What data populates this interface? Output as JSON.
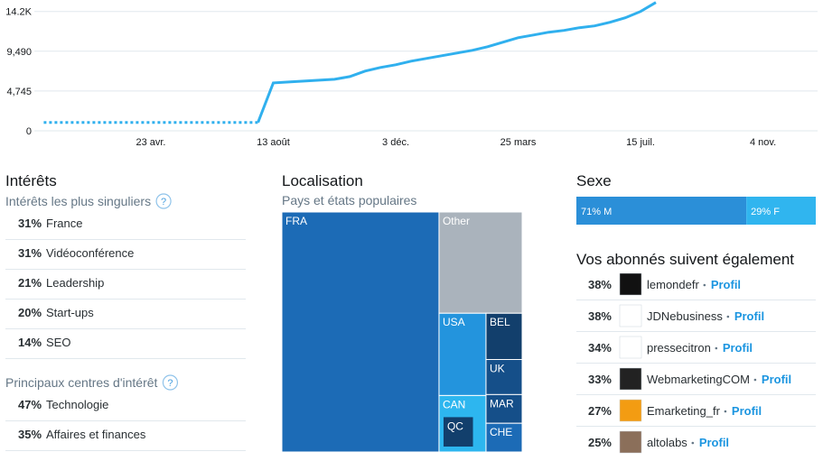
{
  "chart_data": {
    "type": "line",
    "categories": [
      null,
      null,
      null,
      null,
      null,
      null,
      null,
      "23 avr.",
      null,
      null,
      null,
      null,
      null,
      null,
      null,
      "13 août",
      null,
      null,
      null,
      null,
      null,
      null,
      null,
      "3 déc.",
      null,
      null,
      null,
      null,
      null,
      null,
      null,
      "25 mars",
      null,
      null,
      null,
      null,
      null,
      null,
      null,
      "15 juil.",
      null,
      null,
      null,
      null,
      null,
      null,
      null,
      "4 nov.",
      null,
      null,
      null
    ],
    "series": [
      {
        "color": "#30b0ee",
        "dotted": true,
        "values": [
          1000,
          1000,
          1000,
          1000,
          1000,
          1000,
          1000,
          1000,
          1000,
          1000,
          1000,
          1000,
          1000,
          1000,
          1000,
          null,
          null,
          null,
          null,
          null,
          null,
          null,
          null,
          null,
          null,
          null,
          null,
          null,
          null,
          null,
          null,
          null,
          null,
          null,
          null,
          null,
          null,
          null,
          null,
          null,
          null,
          null,
          null,
          null,
          null,
          null,
          null,
          null,
          null,
          null,
          null
        ]
      },
      {
        "color": "#30b0ee",
        "dotted": false,
        "values": [
          null,
          null,
          null,
          null,
          null,
          null,
          null,
          null,
          null,
          null,
          null,
          null,
          null,
          null,
          1000,
          5715,
          5824,
          5931,
          6039,
          6147,
          6470,
          7118,
          7549,
          7872,
          8304,
          8627,
          8951,
          9274,
          9598,
          10029,
          10568,
          11107,
          11431,
          11755,
          11970,
          12294,
          12509,
          12941,
          13480,
          14235,
          15314,
          null,
          null,
          null,
          null,
          null,
          null,
          null,
          null,
          null,
          null
        ]
      }
    ],
    "ylim": [
      0,
      15600
    ],
    "yticks": [
      0,
      {
        "value": 4745,
        "label": "4,745"
      },
      {
        "value": 9490,
        "label": "9,490"
      },
      {
        "value": 14235,
        "label": "14.2K"
      }
    ],
    "grid": true
  },
  "interests": {
    "title": "Intérêts",
    "help": "?",
    "sections": [
      {
        "title": "Intérêts les plus singuliers",
        "items": [
          {
            "pct": "31%",
            "name": "France"
          },
          {
            "pct": "31%",
            "name": "Vidéoconférence"
          },
          {
            "pct": "21%",
            "name": "Leadership"
          },
          {
            "pct": "20%",
            "name": "Start-ups"
          },
          {
            "pct": "14%",
            "name": "SEO"
          }
        ]
      },
      {
        "title": "Principaux centres d'intérêt",
        "items": [
          {
            "pct": "47%",
            "name": "Technologie"
          },
          {
            "pct": "35%",
            "name": "Affaires et finances"
          }
        ]
      }
    ]
  },
  "location": {
    "title": "Localisation",
    "subtitle": "Pays et états populaires",
    "cells": [
      {
        "label": "FRA",
        "value": 65.4,
        "color": "#1c6bb6"
      },
      {
        "label": "Other",
        "value": 14.6,
        "color": "#aab3bc"
      },
      {
        "label": "USA",
        "value": 6.7,
        "color": "#2394dd"
      },
      {
        "label": "CAN",
        "value": 4.6,
        "color": "#2db6ef",
        "children": [
          {
            "label": "QC",
            "value": 1.5,
            "color": "#123f6c"
          }
        ]
      },
      {
        "label": "BEL",
        "value": 2.9,
        "color": "#123f6c"
      },
      {
        "label": "UK",
        "value": 2.2,
        "color": "#154f89"
      },
      {
        "label": "MAR",
        "value": 1.8,
        "color": "#154f89"
      },
      {
        "label": "CHE",
        "value": 1.8,
        "color": "#1c6bb6"
      }
    ]
  },
  "gender": {
    "title": "Sexe",
    "parts": [
      {
        "value": 71,
        "label": "71% M",
        "color": "#2b8fd8"
      },
      {
        "value": 29,
        "label": "29% F",
        "color": "#30b5ef"
      }
    ]
  },
  "also_follow": {
    "title": "Vos abonnés suivent également",
    "link": "Profil",
    "accounts": [
      {
        "pct": "38%",
        "handle": "lemondefr"
      },
      {
        "pct": "38%",
        "handle": "JDNebusiness"
      },
      {
        "pct": "34%",
        "handle": "pressecitron"
      },
      {
        "pct": "33%",
        "handle": "WebmarketingCOM"
      },
      {
        "pct": "27%",
        "handle": "Emarketing_fr"
      },
      {
        "pct": "25%",
        "handle": "altolabs"
      }
    ]
  }
}
